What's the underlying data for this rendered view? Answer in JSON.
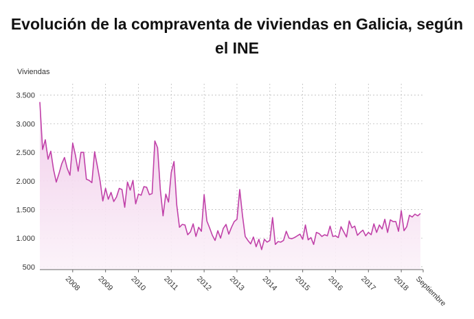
{
  "title_line1": "Evolución de la compraventa de viviendas en Galicia, según",
  "title_line2": "el INE",
  "colors": {
    "line": "#c040a8",
    "area_top": "#f0c8e8",
    "area_bottom": "#fbf2f9",
    "grid": "#bbbbbb"
  },
  "chart_data": {
    "type": "area",
    "title": "Evolución de la compraventa de viviendas en Galicia, según el INE",
    "ylabel": "Viviendas",
    "xlabel": "",
    "ylim": [
      450,
      3700
    ],
    "grid": true,
    "yticks": [
      500,
      1000,
      1500,
      2000,
      2500,
      3000,
      3500
    ],
    "ytick_labels": [
      "500",
      "1.000",
      "1.500",
      "2.000",
      "2.500",
      "3.000",
      "3.500"
    ],
    "xtick_labels": [
      "2008",
      "2009",
      "2010",
      "2011",
      "2012",
      "2013",
      "2014",
      "2015",
      "2016",
      "2017",
      "2018",
      "Septiembre"
    ],
    "series": [
      {
        "frequency": "monthly",
        "start": "2007-01",
        "end": "2018-09",
        "values": [
          3380,
          2550,
          2720,
          2380,
          2520,
          2200,
          1980,
          2130,
          2300,
          2410,
          2220,
          2100,
          2660,
          2450,
          2170,
          2500,
          2500,
          2030,
          2010,
          1970,
          2510,
          2260,
          2000,
          1650,
          1870,
          1680,
          1800,
          1640,
          1720,
          1870,
          1850,
          1540,
          1980,
          1840,
          2010,
          1600,
          1770,
          1750,
          1900,
          1890,
          1760,
          1780,
          2700,
          2580,
          1850,
          1390,
          1770,
          1630,
          2150,
          2340,
          1580,
          1190,
          1240,
          1230,
          1060,
          1110,
          1250,
          1030,
          1190,
          1120,
          1760,
          1300,
          1180,
          1050,
          960,
          1130,
          1000,
          1170,
          1240,
          1070,
          1190,
          1290,
          1330,
          1850,
          1400,
          1030,
          960,
          900,
          1020,
          850,
          980,
          800,
          980,
          930,
          960,
          1360,
          890,
          940,
          930,
          960,
          1120,
          1000,
          990,
          1010,
          1040,
          1070,
          980,
          1230,
          970,
          1010,
          890,
          1100,
          1080,
          1030,
          1060,
          1040,
          1210,
          1030,
          1040,
          1010,
          1200,
          1110,
          1020,
          1300,
          1180,
          1210,
          1050,
          1100,
          1140,
          1040,
          1100,
          1060,
          1250,
          1100,
          1230,
          1160,
          1330,
          1100,
          1320,
          1290,
          1290,
          1120,
          1480,
          1130,
          1200,
          1400,
          1370,
          1420,
          1390,
          1430
        ]
      }
    ]
  }
}
